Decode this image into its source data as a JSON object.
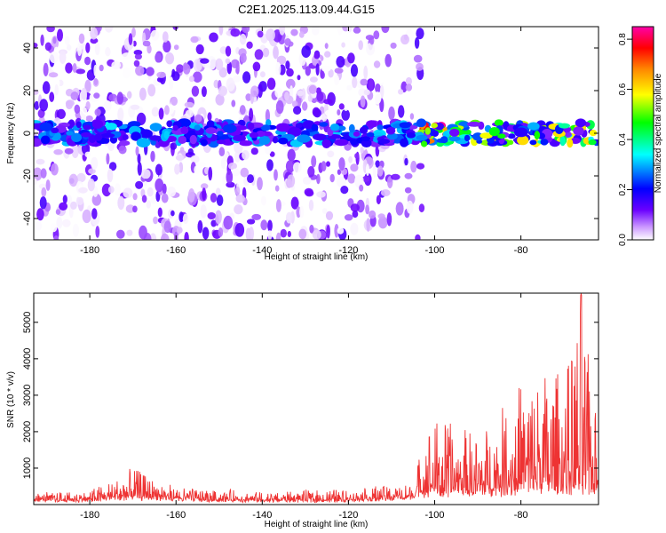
{
  "figure_title": "C2E1.2025.113.09.44.G15",
  "chart_data": [
    {
      "type": "heatmap",
      "xlabel": "Height of straight line (km)",
      "ylabel": "Frequency (Hz)",
      "xlim": [
        -193,
        -62
      ],
      "ylim": [
        -50,
        50
      ],
      "x_ticks": [
        -180,
        -160,
        -140,
        -120,
        -100,
        -80
      ],
      "y_ticks": [
        -40,
        -20,
        0,
        20,
        40
      ],
      "colorbar": {
        "label": "Normalized spectral amplitude",
        "range": [
          0,
          0.85
        ],
        "ticks": [
          0.0,
          0.2,
          0.4,
          0.6,
          0.8
        ],
        "colors": [
          "#ffffff",
          "#cc99ff",
          "#6a00ff",
          "#0000ff",
          "#00ffff",
          "#00ff00",
          "#ffff00",
          "#ff8800",
          "#ff0000",
          "#ff00aa"
        ]
      },
      "features": [
        {
          "name": "broadband noise",
          "x_range": [
            -193,
            -103
          ],
          "freq_range": [
            -50,
            50
          ],
          "amplitude_range": [
            0.0,
            0.15
          ]
        },
        {
          "name": "carrier band",
          "x_range": [
            -193,
            -62
          ],
          "freq_center": 0,
          "freq_halfwidth": 5,
          "amplitude_range": [
            0.1,
            0.85
          ]
        }
      ]
    },
    {
      "type": "line",
      "xlabel": "Height of straight line (km)",
      "ylabel": "SNR (10 * v/v)",
      "xlim": [
        -193,
        -62
      ],
      "ylim": [
        0,
        5800
      ],
      "x_ticks": [
        -180,
        -160,
        -140,
        -120,
        -100,
        -80
      ],
      "y_ticks": [
        1000,
        2000,
        3000,
        4000,
        5000
      ],
      "color": "#ee3333",
      "series_envelope": [
        {
          "x": -193,
          "base": 150,
          "peak": 350
        },
        {
          "x": -180,
          "base": 150,
          "peak": 400
        },
        {
          "x": -170,
          "base": 250,
          "peak": 1050
        },
        {
          "x": -160,
          "base": 180,
          "peak": 500
        },
        {
          "x": -140,
          "base": 120,
          "peak": 380
        },
        {
          "x": -120,
          "base": 150,
          "peak": 450
        },
        {
          "x": -105,
          "base": 250,
          "peak": 650
        },
        {
          "x": -102,
          "base": 400,
          "peak": 2500
        },
        {
          "x": -95,
          "base": 400,
          "peak": 2300
        },
        {
          "x": -90,
          "base": 400,
          "peak": 2100
        },
        {
          "x": -85,
          "base": 500,
          "peak": 2600
        },
        {
          "x": -78,
          "base": 600,
          "peak": 3900
        },
        {
          "x": -70,
          "base": 600,
          "peak": 3800
        },
        {
          "x": -66,
          "base": 600,
          "peak": 5800
        },
        {
          "x": -62,
          "base": 500,
          "peak": 2200
        }
      ]
    }
  ]
}
